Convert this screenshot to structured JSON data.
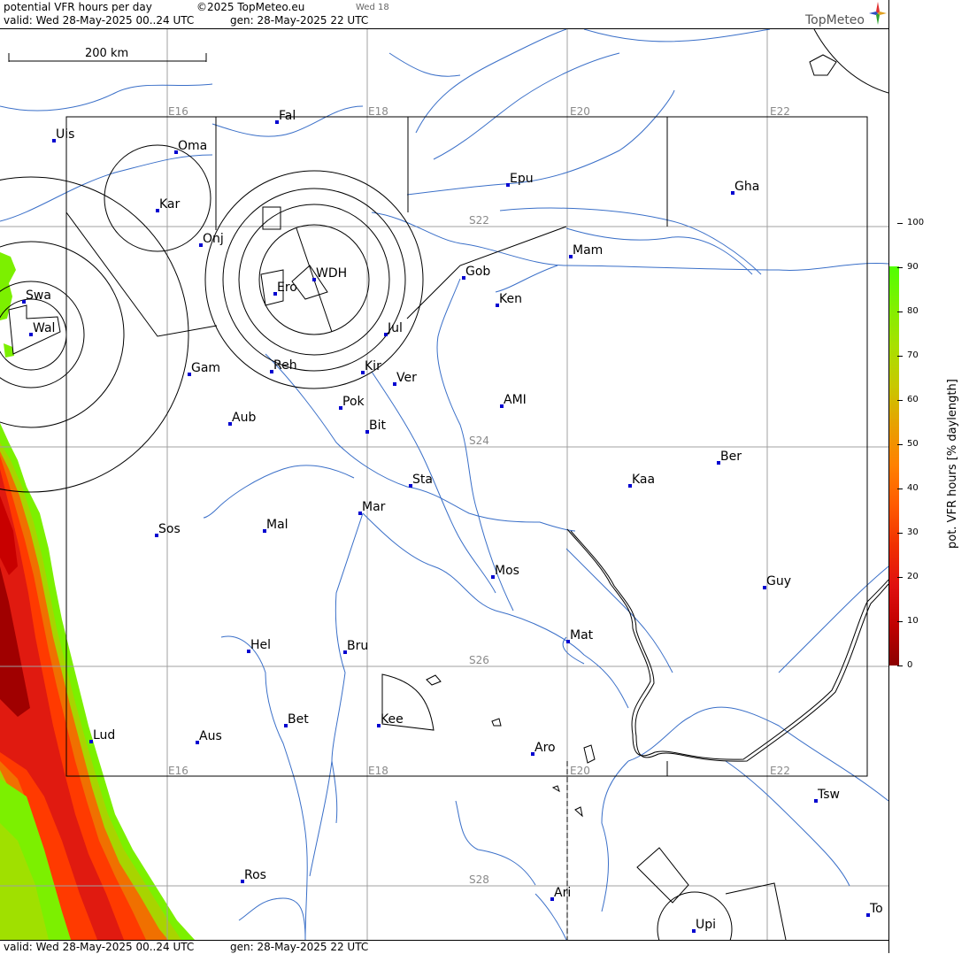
{
  "header": {
    "title": "potential VFR hours per day",
    "copyright": "©2025 TopMeteo.eu",
    "day_tag": "Wed 18",
    "valid": "valid:  Wed  28-May-2025  00..24 UTC",
    "generated": "gen: 28-May-2025 22 UTC",
    "logo": "TopMeteo"
  },
  "footer": {
    "valid": "valid:  Wed  28-May-2025  00..24 UTC",
    "generated": "gen: 28-May-2025 22 UTC"
  },
  "scale_bar": {
    "label": "200 km"
  },
  "grid_labels": {
    "lon_top": [
      "E16",
      "E18",
      "E20",
      "E22"
    ],
    "lon_bottom": [
      "E16",
      "E18",
      "E20",
      "E22"
    ],
    "lat": [
      "S22",
      "S24",
      "S26",
      "S28"
    ]
  },
  "places": [
    "Uis",
    "Fal",
    "Oma",
    "Kar",
    "Onj",
    "Epu",
    "Gha",
    "Mam",
    "Gob",
    "Ken",
    "Swa",
    "Wal",
    "WDH",
    "Ero",
    "Jul",
    "Gam",
    "Reh",
    "Kir",
    "Ver",
    "Aub",
    "Pok",
    "AMI",
    "Bit",
    "Ber",
    "Sta",
    "Kaa",
    "Mar",
    "Sos",
    "Mal",
    "Mos",
    "Guy",
    "Mat",
    "Hel",
    "Bru",
    "Lud",
    "Bet",
    "Kee",
    "Aus",
    "Aro",
    "Tsw",
    "Ros",
    "Ari",
    "To",
    "Upi"
  ],
  "colorbar": {
    "title": "pot. VFR hours [% daylength]",
    "labels": [
      "100",
      "90",
      "80",
      "70",
      "60",
      "50",
      "40",
      "30",
      "20",
      "10",
      "0"
    ],
    "colors": [
      "#8b0000",
      "#c00000",
      "#e01010",
      "#f03000",
      "#ff5a00",
      "#ff8000",
      "#e8a000",
      "#c8c800",
      "#a8e000",
      "#80f000",
      "#50ff00"
    ]
  }
}
